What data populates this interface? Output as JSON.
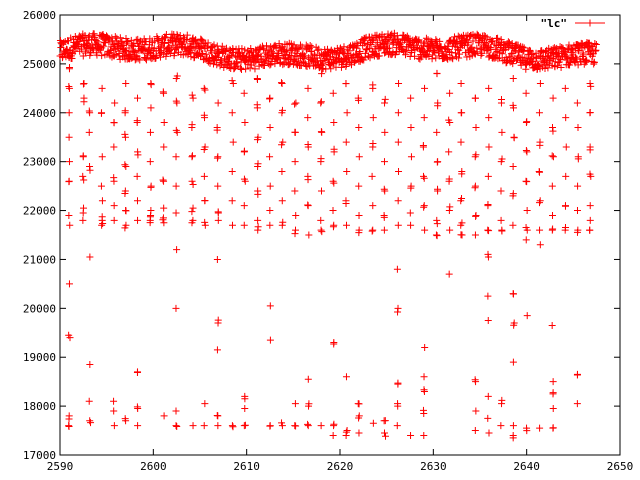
{
  "chart_data": {
    "type": "scatter",
    "marker": "plus",
    "grid": false,
    "legend_position": "top-right",
    "xlim": [
      2590,
      2650
    ],
    "ylim": [
      17000,
      26000
    ],
    "x_ticks": [
      "2590",
      "2600",
      "2610",
      "2620",
      "2630",
      "2640",
      "2650"
    ],
    "y_ticks": [
      "17000",
      "18000",
      "19000",
      "20000",
      "21000",
      "22000",
      "23000",
      "24000",
      "25000",
      "26000"
    ],
    "series": [
      {
        "name": "\"lc\"",
        "color": "#ff0000",
        "description_of_bulk": "dense band of points ~25000-25600 spanning x 2590-2647.5",
        "baseline_band": {
          "x_range": [
            2590,
            2647.5
          ],
          "y_center": 25250,
          "y_spread": 350
        },
        "drop_columns": [
          {
            "x": 2591,
            "y": [
              24900,
              24500,
              24000,
              23500,
              23000,
              22600,
              21900,
              21700,
              20500,
              19450,
              17800,
              17600
            ]
          },
          {
            "x": 2592.5,
            "y": [
              24600,
              24300,
              23100,
              22700,
              22050,
              21950,
              21800
            ]
          },
          {
            "x": 2593.2,
            "y": [
              24000,
              23600,
              22900,
              21050,
              18850,
              18100,
              17700
            ]
          },
          {
            "x": 2594.5,
            "y": [
              24500,
              24000,
              23100,
              22500,
              22200,
              21800,
              21700
            ]
          },
          {
            "x": 2595.8,
            "y": [
              24200,
              23800,
              23300,
              22600,
              22100,
              21800,
              18100,
              17900,
              17600
            ]
          },
          {
            "x": 2597,
            "y": [
              24600,
              24000,
              23500,
              22900,
              22400,
              22000,
              21700,
              17700
            ]
          },
          {
            "x": 2598.3,
            "y": [
              24300,
              23800,
              23200,
              22700,
              22200,
              21800,
              18700,
              17950,
              17600
            ]
          },
          {
            "x": 2599.7,
            "y": [
              24600,
              24100,
              23600,
              23000,
              22500,
              22000,
              21900,
              21800
            ]
          },
          {
            "x": 2601.1,
            "y": [
              24400,
              23800,
              23300,
              22600,
              22050,
              21850,
              21750,
              17800
            ]
          },
          {
            "x": 2602.5,
            "y": [
              24700,
              24200,
              23600,
              23100,
              22500,
              21950,
              21200,
              20000,
              17900,
              17600
            ]
          },
          {
            "x": 2604.2,
            "y": [
              24300,
              23700,
              23100,
              22600,
              22050,
              21800,
              17600
            ]
          },
          {
            "x": 2605.5,
            "y": [
              24500,
              23900,
              23300,
              22700,
              22200,
              21700,
              18050,
              17600
            ]
          },
          {
            "x": 2606.9,
            "y": [
              24200,
              23700,
              23100,
              22500,
              21950,
              21800,
              21000,
              19700,
              19150,
              17800,
              17600
            ]
          },
          {
            "x": 2608.5,
            "y": [
              24600,
              24000,
              23400,
              22800,
              22200,
              21700,
              17600
            ]
          },
          {
            "x": 2609.8,
            "y": [
              24400,
              23800,
              23200,
              22600,
              22100,
              21700,
              18200,
              17950,
              17600
            ]
          },
          {
            "x": 2611.2,
            "y": [
              24700,
              24100,
              23500,
              22900,
              22400,
              21800,
              21600
            ]
          },
          {
            "x": 2612.5,
            "y": [
              24300,
              23700,
              23100,
              22500,
              22000,
              21700,
              20050,
              19350,
              17600
            ]
          },
          {
            "x": 2613.8,
            "y": [
              24600,
              24000,
              23400,
              22800,
              22200,
              21700,
              17600
            ]
          },
          {
            "x": 2615.2,
            "y": [
              24200,
              23600,
              23000,
              22400,
              21900,
              21600,
              18050,
              17600
            ]
          },
          {
            "x": 2616.6,
            "y": [
              24500,
              23900,
              23300,
              22700,
              22100,
              21500,
              18550,
              18000,
              17600
            ]
          },
          {
            "x": 2618,
            "y": [
              24800,
              24200,
              23600,
              23000,
              22400,
              21800,
              21600,
              17600
            ]
          },
          {
            "x": 2619.3,
            "y": [
              24400,
              23800,
              23200,
              22600,
              22000,
              21700,
              19300,
              17600,
              17400
            ]
          },
          {
            "x": 2620.7,
            "y": [
              24600,
              24000,
              23400,
              22800,
              22200,
              21700,
              18600,
              17500,
              17400
            ]
          },
          {
            "x": 2622,
            "y": [
              24300,
              23700,
              23100,
              22500,
              21900,
              21600,
              18050,
              17800,
              17450
            ]
          },
          {
            "x": 2623.5,
            "y": [
              24500,
              23900,
              23300,
              22700,
              22100,
              21600,
              17650
            ]
          },
          {
            "x": 2624.8,
            "y": [
              24200,
              23600,
              23000,
              22400,
              21900,
              21600,
              17700,
              17450
            ]
          },
          {
            "x": 2626.2,
            "y": [
              24600,
              24000,
              23400,
              22800,
              22200,
              21700,
              20800,
              20000,
              18450,
              18000,
              17600
            ]
          },
          {
            "x": 2627.6,
            "y": [
              24300,
              23700,
              23100,
              22500,
              21950,
              21700,
              17400
            ]
          },
          {
            "x": 2629,
            "y": [
              24500,
              23900,
              23300,
              22700,
              22100,
              21600,
              19200,
              18600,
              18300,
              17850,
              17400
            ]
          },
          {
            "x": 2630.4,
            "y": [
              24800,
              24200,
              23600,
              23000,
              22400,
              21800,
              21500
            ]
          },
          {
            "x": 2631.7,
            "y": [
              24400,
              23800,
              23200,
              22600,
              22000,
              21600,
              20700
            ]
          },
          {
            "x": 2633,
            "y": [
              24600,
              24000,
              23400,
              22800,
              22200,
              21700,
              21500
            ]
          },
          {
            "x": 2634.5,
            "y": [
              24300,
              23700,
              23100,
              22500,
              21900,
              21500,
              18500,
              17900,
              17500
            ]
          },
          {
            "x": 2635.9,
            "y": [
              24500,
              23900,
              23300,
              22700,
              22100,
              21600,
              21050,
              20250,
              19750,
              18200,
              17750,
              17450
            ]
          },
          {
            "x": 2637.3,
            "y": [
              24200,
              23600,
              23000,
              22400,
              21800,
              21600,
              18050,
              17600
            ]
          },
          {
            "x": 2638.6,
            "y": [
              24700,
              24100,
              23500,
              22900,
              22300,
              21700,
              20300,
              19700,
              18900,
              17600,
              17350
            ]
          },
          {
            "x": 2640,
            "y": [
              24400,
              23800,
              23200,
              22600,
              22000,
              21600,
              21400,
              19850,
              17550
            ]
          },
          {
            "x": 2641.4,
            "y": [
              24600,
              24000,
              23400,
              22800,
              22200,
              21600,
              21300,
              17550
            ]
          },
          {
            "x": 2642.8,
            "y": [
              24300,
              23700,
              23100,
              22500,
              21900,
              21600,
              19650,
              18500,
              18250,
              17950,
              17550
            ]
          },
          {
            "x": 2644.2,
            "y": [
              24500,
              23900,
              23300,
              22700,
              22100,
              21600
            ]
          },
          {
            "x": 2645.5,
            "y": [
              24200,
              23700,
              23100,
              22500,
              22000,
              21600,
              18650,
              18050
            ]
          },
          {
            "x": 2646.8,
            "y": [
              24600,
              24000,
              23300,
              22700,
              22100,
              21800,
              21600
            ]
          }
        ]
      }
    ]
  }
}
